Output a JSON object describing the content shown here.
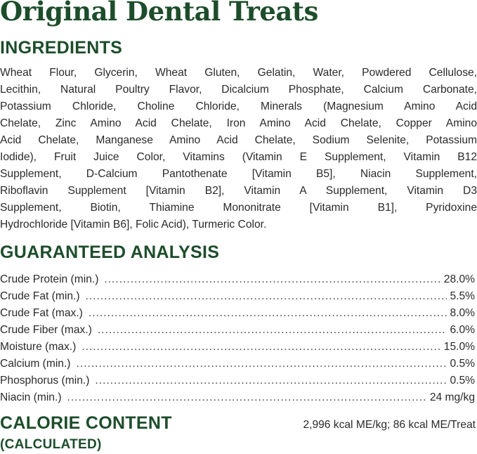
{
  "title": "Original Dental Treats",
  "ingredients": {
    "heading": "INGREDIENTS",
    "lines": [
      "Wheat Flour, Glycerin, Wheat Gluten, Gelatin, Water, Powdered Cellulose,",
      "Lecithin, Natural Poultry Flavor, Dicalcium Phosphate, Calcium Carbonate,",
      "Potassium Chloride, Choline Chloride, Minerals (Magnesium Amino Acid",
      "Chelate, Zinc Amino Acid Chelate, Iron Amino Acid Chelate, Copper Amino",
      "Acid Chelate, Manganese Amino Acid Chelate, Sodium Selenite, Potassium",
      "Iodide), Fruit Juice Color, Vitamins (Vitamin E Supplement, Vitamin B12",
      "Supplement, D-Calcium Pantothenate [Vitamin B5], Niacin Supplement,",
      "Riboflavin Supplement [Vitamin B2], Vitamin A Supplement, Vitamin D3",
      "Supplement, Biotin, Thiamine Mononitrate [Vitamin B1], Pyridoxine",
      "Hydrochloride [Vitamin B6], Folic Acid), Turmeric Color."
    ]
  },
  "analysis": {
    "heading": "GUARANTEED ANALYSIS",
    "rows": [
      {
        "label": "Crude Protein (min.)",
        "value": "28.0%"
      },
      {
        "label": "Crude Fat (min.)",
        "value": "5.5%"
      },
      {
        "label": "Crude Fat (max.)",
        "value": "8.0%"
      },
      {
        "label": "Crude Fiber (max.)",
        "value": "6.0%"
      },
      {
        "label": "Moisture (max.)",
        "value": "15.0%"
      },
      {
        "label": "Calcium (min.)",
        "value": "0.5%"
      },
      {
        "label": "Phosphorus (min.)",
        "value": "0.5%"
      },
      {
        "label": "Niacin (min.)",
        "value": "24 mg/kg"
      }
    ]
  },
  "calorie": {
    "heading": "CALORIE CONTENT",
    "subheading": "(CALCULATED)",
    "value": "2,996 kcal ME/kg; 86 kcal ME/Treat"
  },
  "colors": {
    "heading_green": "#1d4d2b",
    "text": "#2a2a2a"
  }
}
